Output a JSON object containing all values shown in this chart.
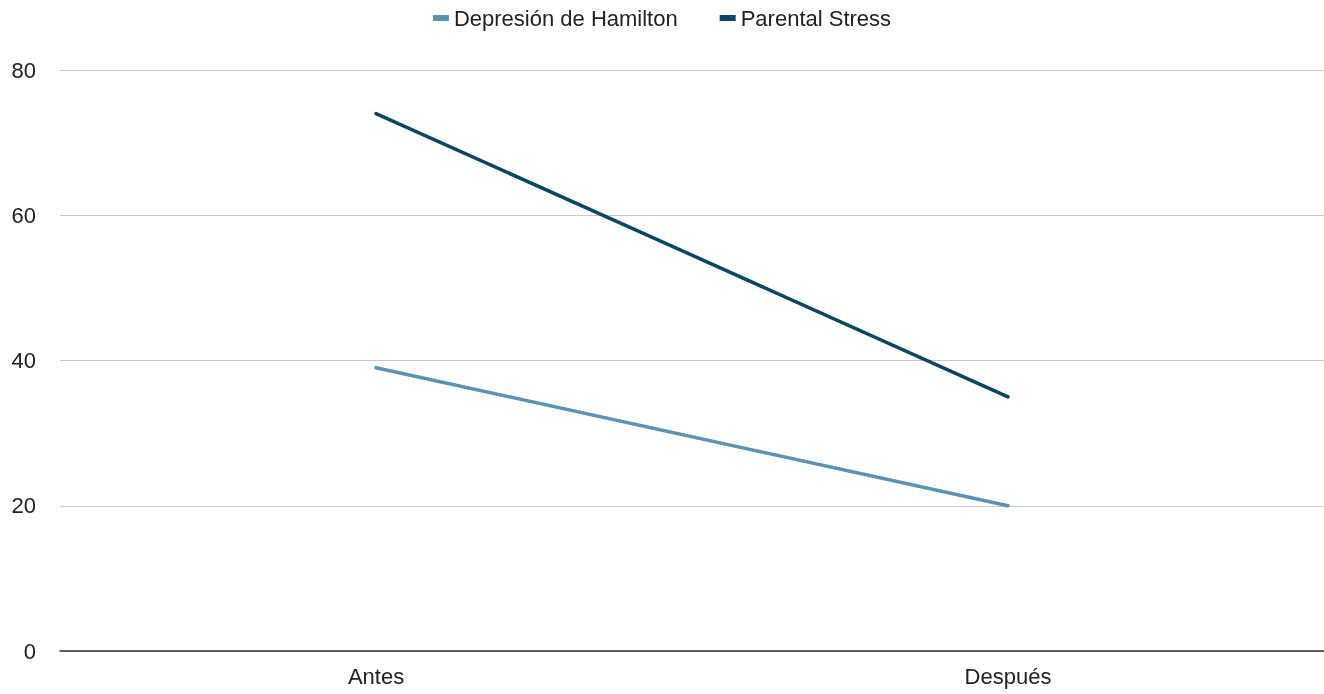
{
  "chart_data": {
    "type": "line",
    "categories": [
      "Antes",
      "Después"
    ],
    "series": [
      {
        "name": "Depresión de Hamilton",
        "color": "#5b93b0",
        "values": [
          39,
          20
        ]
      },
      {
        "name": "Parental Stress",
        "color": "#0e4560",
        "values": [
          74,
          35
        ]
      }
    ],
    "ylim": [
      0,
      80
    ],
    "yticks": [
      0,
      20,
      40,
      60,
      80
    ],
    "grid": "y",
    "legend": "top",
    "marker": "none",
    "line_style": "solid"
  }
}
